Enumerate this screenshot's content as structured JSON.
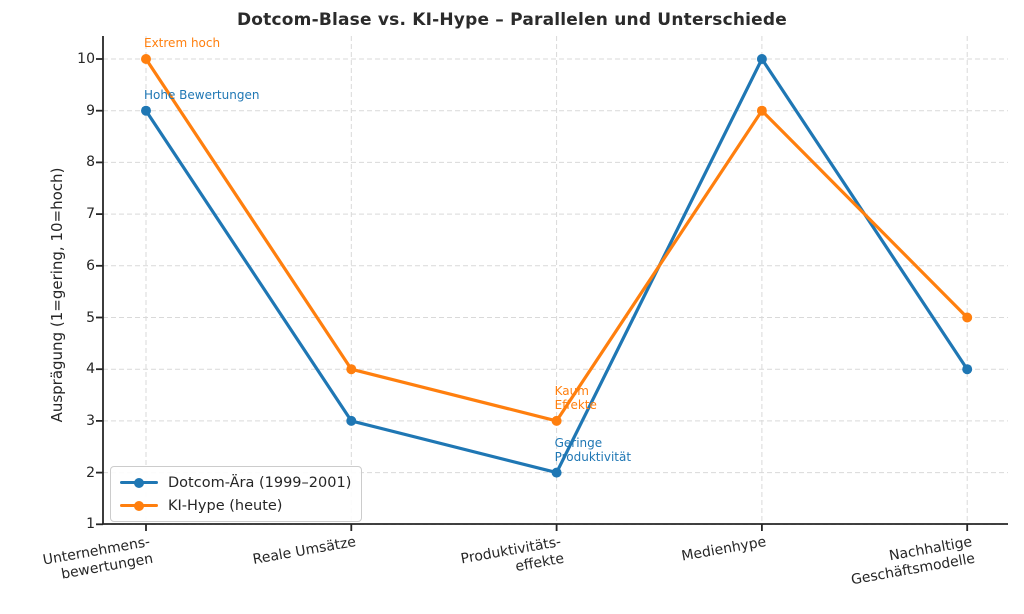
{
  "chart_data": {
    "type": "line",
    "title": "Dotcom-Blase vs. KI-Hype – Parallelen und Unterschiede",
    "ylabel": "Ausprägung (1=gering, 10=hoch)",
    "xlabel": "",
    "categories": [
      "Unternehmens-\nbewertungen",
      "Reale Umsätze",
      "Produktivitäts-\neffekte",
      "Medienhype",
      "Nachhaltige\nGeschäftsmodelle"
    ],
    "series": [
      {
        "name": "Dotcom-Ära (1999–2001)",
        "color": "#1f77b4",
        "values": [
          9,
          3,
          2,
          10,
          4
        ]
      },
      {
        "name": "KI-Hype (heute)",
        "color": "#ff7f0e",
        "values": [
          10,
          4,
          3,
          9,
          5
        ]
      }
    ],
    "ylim": [
      1,
      10
    ],
    "yticks": [
      1,
      2,
      3,
      4,
      5,
      6,
      7,
      8,
      9,
      10
    ],
    "grid": true,
    "legend_position": "lower left",
    "annotations": [
      {
        "text": "Extrem hoch",
        "x": 0,
        "y": 10,
        "series": 1
      },
      {
        "text": "Hohe Bewertungen",
        "x": 0,
        "y": 9,
        "series": 0
      },
      {
        "text": "Kaum\nEffekte",
        "x": 2,
        "y": 3,
        "series": 1
      },
      {
        "text": "Geringe\nProduktivität",
        "x": 2,
        "y": 2,
        "series": 0
      }
    ],
    "colors": {
      "spine": "#262626",
      "grid": "#d9d9d9",
      "tick_label": "#262626",
      "title": "#2b2b2b"
    }
  }
}
